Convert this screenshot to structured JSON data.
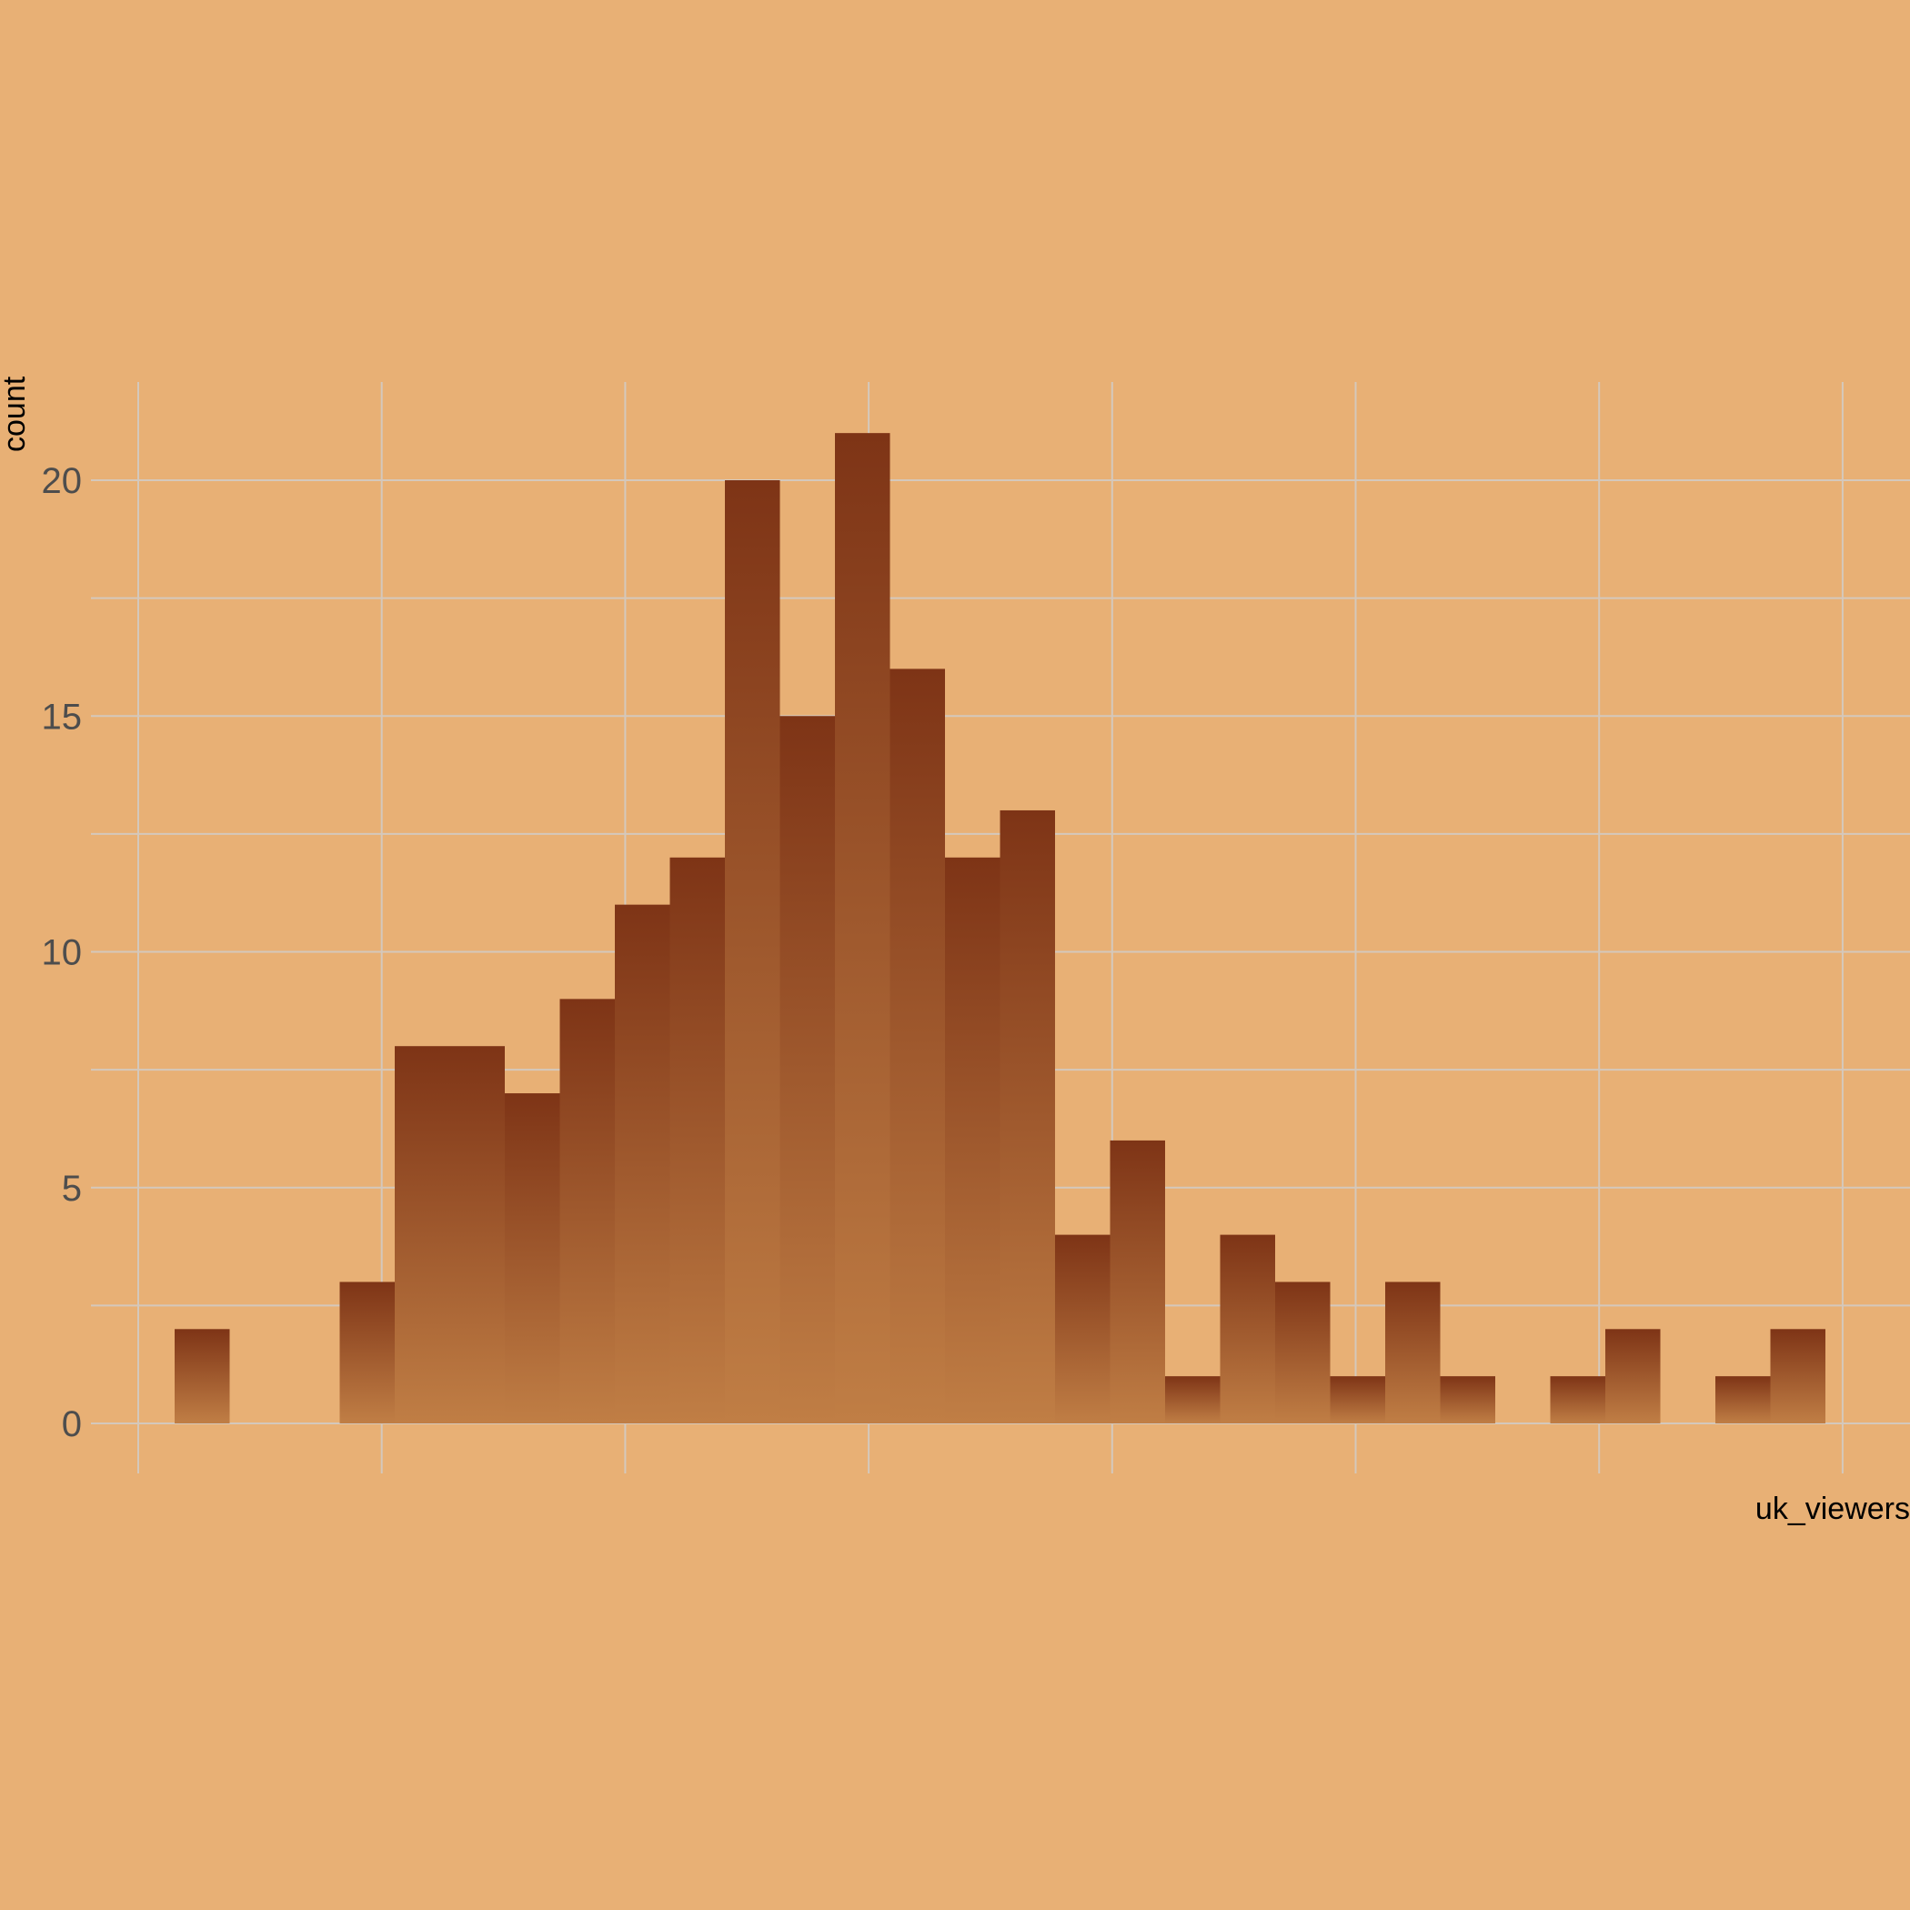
{
  "chart_data": {
    "type": "bar",
    "subtype": "histogram",
    "xlabel": "uk_viewers",
    "ylabel": "count",
    "ylim": [
      0,
      22
    ],
    "y_ticks": [
      0,
      5,
      10,
      15,
      20
    ],
    "bin_width": 1,
    "x_range": [
      0,
      31
    ],
    "x_grid_count": 8,
    "x_tick_labels_shown": false,
    "grid": true,
    "bins": [
      {
        "start": 0,
        "count": 0
      },
      {
        "start": 1,
        "count": 2
      },
      {
        "start": 2,
        "count": 0
      },
      {
        "start": 3,
        "count": 0
      },
      {
        "start": 4,
        "count": 3
      },
      {
        "start": 5,
        "count": 8
      },
      {
        "start": 6,
        "count": 8
      },
      {
        "start": 7,
        "count": 7
      },
      {
        "start": 8,
        "count": 9
      },
      {
        "start": 9,
        "count": 11
      },
      {
        "start": 10,
        "count": 12
      },
      {
        "start": 11,
        "count": 20
      },
      {
        "start": 12,
        "count": 15
      },
      {
        "start": 13,
        "count": 21
      },
      {
        "start": 14,
        "count": 16
      },
      {
        "start": 15,
        "count": 12
      },
      {
        "start": 16,
        "count": 13
      },
      {
        "start": 17,
        "count": 4
      },
      {
        "start": 18,
        "count": 6
      },
      {
        "start": 19,
        "count": 1
      },
      {
        "start": 20,
        "count": 4
      },
      {
        "start": 21,
        "count": 3
      },
      {
        "start": 22,
        "count": 1
      },
      {
        "start": 23,
        "count": 3
      },
      {
        "start": 24,
        "count": 1
      },
      {
        "start": 25,
        "count": 0
      },
      {
        "start": 26,
        "count": 1
      },
      {
        "start": 27,
        "count": 2
      },
      {
        "start": 28,
        "count": 0
      },
      {
        "start": 29,
        "count": 1
      },
      {
        "start": 30,
        "count": 2
      }
    ],
    "colors": {
      "background": "#e8b075",
      "bar_top": "#7e3416",
      "bar_bottom": "#c07e45",
      "grid": "#d4c8bc",
      "tick_text": "#4d4d4d",
      "axis_title": "#000000"
    }
  }
}
